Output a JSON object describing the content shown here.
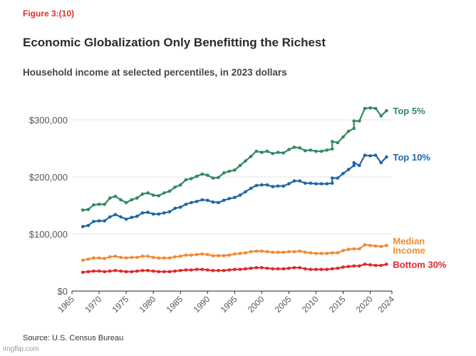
{
  "figure_label": "Figure 3:(10)",
  "watermark": "imgflip.com",
  "chart_data": {
    "type": "line",
    "title": "Economic Globalization Only Benefitting the Richest",
    "subtitle": "Household income at selected percentiles, in 2023 dollars",
    "source": "Source: U.S. Census Bureau",
    "xlabel": "",
    "ylabel": "",
    "xlim": [
      1965,
      2024
    ],
    "ylim": [
      0,
      340000
    ],
    "grid": true,
    "x_ticks": [
      1965,
      1970,
      1975,
      1980,
      1985,
      1990,
      1995,
      2000,
      2005,
      2010,
      2015,
      2020,
      2024
    ],
    "y_ticks": [
      {
        "value": 0,
        "label": "$0"
      },
      {
        "value": 100000,
        "label": "$100,000"
      },
      {
        "value": 200000,
        "label": "$200,000"
      },
      {
        "value": 300000,
        "label": "$300,000"
      }
    ],
    "series": [
      {
        "name": "Top 5%",
        "label_lines": [
          "Top 5%"
        ],
        "color": "#2e8b5e",
        "x": [
          1967,
          1968,
          1969,
          1970,
          1971,
          1972,
          1973,
          1974,
          1975,
          1976,
          1977,
          1978,
          1979,
          1980,
          1981,
          1982,
          1983,
          1984,
          1985,
          1986,
          1987,
          1988,
          1989,
          1990,
          1991,
          1992,
          1993,
          1994,
          1995,
          1996,
          1997,
          1998,
          1999,
          2000,
          2001,
          2002,
          2003,
          2004,
          2005,
          2006,
          2007,
          2008,
          2009,
          2010,
          2011,
          2012,
          2013,
          2013,
          2014,
          2015,
          2016,
          2017,
          2017,
          2018,
          2019,
          2020,
          2021,
          2022,
          2023
        ],
        "values": [
          142000,
          143000,
          151000,
          152000,
          152000,
          163000,
          166000,
          160000,
          155000,
          160000,
          163000,
          170000,
          172000,
          168000,
          167000,
          172000,
          175000,
          182000,
          186000,
          195000,
          197000,
          201000,
          205000,
          203000,
          198000,
          199000,
          207000,
          210000,
          212000,
          220000,
          228000,
          236000,
          245000,
          243000,
          245000,
          241000,
          243000,
          242000,
          248000,
          252000,
          251000,
          246000,
          247000,
          245000,
          245000,
          247000,
          249000,
          262000,
          260000,
          270000,
          280000,
          285000,
          298000,
          298000,
          320000,
          321000,
          320000,
          307000,
          316000
        ]
      },
      {
        "name": "Top 10%",
        "label_lines": [
          "Top 10%"
        ],
        "color": "#1f66a8",
        "x": [
          1967,
          1968,
          1969,
          1970,
          1971,
          1972,
          1973,
          1974,
          1975,
          1976,
          1977,
          1978,
          1979,
          1980,
          1981,
          1982,
          1983,
          1984,
          1985,
          1986,
          1987,
          1988,
          1989,
          1990,
          1991,
          1992,
          1993,
          1994,
          1995,
          1996,
          1997,
          1998,
          1999,
          2000,
          2001,
          2002,
          2003,
          2004,
          2005,
          2006,
          2007,
          2008,
          2009,
          2010,
          2011,
          2012,
          2013,
          2013,
          2014,
          2015,
          2016,
          2017,
          2017,
          2018,
          2019,
          2020,
          2021,
          2022,
          2023
        ],
        "values": [
          113000,
          115000,
          122000,
          123000,
          123000,
          130000,
          134000,
          130000,
          126000,
          129000,
          131000,
          137000,
          138000,
          135000,
          135000,
          137000,
          139000,
          145000,
          147000,
          152000,
          155000,
          157000,
          160000,
          159000,
          156000,
          155000,
          159000,
          162000,
          164000,
          168000,
          174000,
          180000,
          185000,
          186000,
          186000,
          183000,
          184000,
          184000,
          188000,
          193000,
          193000,
          189000,
          189000,
          188000,
          188000,
          188000,
          189000,
          198000,
          198000,
          206000,
          213000,
          220000,
          225000,
          220000,
          238000,
          237000,
          238000,
          225000,
          235000
        ]
      },
      {
        "name": "Median Income",
        "label_lines": [
          "Median",
          "Income"
        ],
        "color": "#f28a2e",
        "x": [
          1967,
          1968,
          1969,
          1970,
          1971,
          1972,
          1973,
          1974,
          1975,
          1976,
          1977,
          1978,
          1979,
          1980,
          1981,
          1982,
          1983,
          1984,
          1985,
          1986,
          1987,
          1988,
          1989,
          1990,
          1991,
          1992,
          1993,
          1994,
          1995,
          1996,
          1997,
          1998,
          1999,
          2000,
          2001,
          2002,
          2003,
          2004,
          2005,
          2006,
          2007,
          2008,
          2009,
          2010,
          2011,
          2012,
          2013,
          2014,
          2015,
          2016,
          2017,
          2018,
          2019,
          2020,
          2021,
          2022,
          2023
        ],
        "values": [
          54000,
          56000,
          58000,
          58000,
          57000,
          60000,
          61000,
          59000,
          58000,
          59000,
          59000,
          61000,
          61000,
          59000,
          58000,
          58000,
          58000,
          60000,
          61000,
          63000,
          63000,
          64000,
          65000,
          64000,
          62000,
          62000,
          62000,
          63000,
          65000,
          66000,
          67000,
          69000,
          70000,
          70000,
          69000,
          68000,
          68000,
          68000,
          69000,
          69000,
          70000,
          68000,
          67000,
          66000,
          66000,
          66000,
          67000,
          67000,
          71000,
          73000,
          74000,
          74000,
          81000,
          80000,
          79000,
          78000,
          80000
        ]
      },
      {
        "name": "Bottom 30%",
        "label_lines": [
          "Bottom 30%"
        ],
        "color": "#e0262b",
        "x": [
          1967,
          1968,
          1969,
          1970,
          1971,
          1972,
          1973,
          1974,
          1975,
          1976,
          1977,
          1978,
          1979,
          1980,
          1981,
          1982,
          1983,
          1984,
          1985,
          1986,
          1987,
          1988,
          1989,
          1990,
          1991,
          1992,
          1993,
          1994,
          1995,
          1996,
          1997,
          1998,
          1999,
          2000,
          2001,
          2002,
          2003,
          2004,
          2005,
          2006,
          2007,
          2008,
          2009,
          2010,
          2011,
          2012,
          2013,
          2014,
          2015,
          2016,
          2017,
          2018,
          2019,
          2020,
          2021,
          2022,
          2023
        ],
        "values": [
          33000,
          34000,
          35000,
          35000,
          34000,
          35000,
          36000,
          35000,
          34000,
          34000,
          35000,
          36000,
          36000,
          35000,
          34000,
          34000,
          34000,
          35000,
          36000,
          37000,
          37000,
          38000,
          38000,
          37000,
          36000,
          36000,
          36000,
          37000,
          38000,
          38000,
          39000,
          40000,
          41000,
          41000,
          40000,
          39000,
          39000,
          39000,
          40000,
          41000,
          41000,
          39000,
          38000,
          38000,
          38000,
          38000,
          39000,
          40000,
          42000,
          43000,
          44000,
          44000,
          47000,
          46000,
          45000,
          45000,
          47000
        ]
      }
    ]
  }
}
